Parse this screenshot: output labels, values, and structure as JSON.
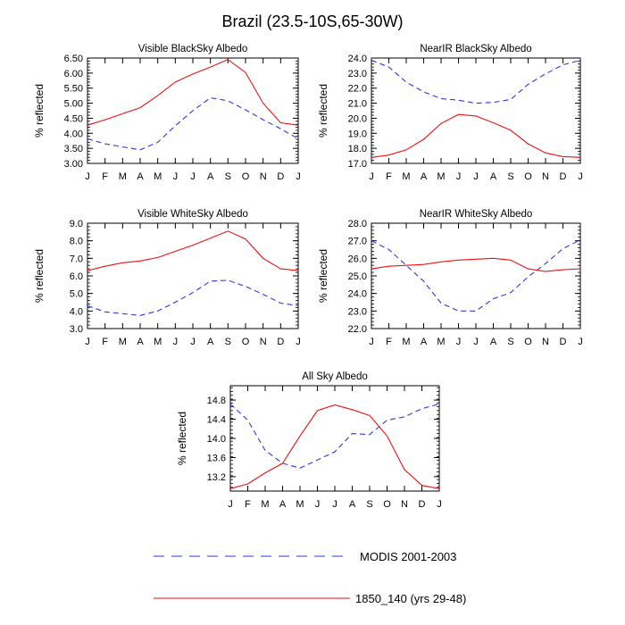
{
  "page_title": "Brazil (23.5-10S,65-30W)",
  "legend": {
    "modis_label": "MODIS 2001-2003",
    "model_label": "1850_140 (yrs 29-48)",
    "modis_color": "#3333ee",
    "model_color": "#ee1111"
  },
  "chart_data": [
    {
      "type": "line",
      "title": "Visible BlackSky Albedo",
      "xlabel": "",
      "ylabel": "% reflected",
      "categories": [
        "J",
        "F",
        "M",
        "A",
        "M",
        "J",
        "J",
        "A",
        "S",
        "O",
        "N",
        "D",
        "J"
      ],
      "ylim": [
        3.0,
        6.5
      ],
      "yticks": [
        "3.00",
        "3.50",
        "4.00",
        "4.50",
        "5.00",
        "5.50",
        "6.00",
        "6.50"
      ],
      "series": [
        {
          "name": "MODIS 2001-2003",
          "style": "dashed",
          "values": [
            3.82,
            3.65,
            3.55,
            3.45,
            3.7,
            4.25,
            4.75,
            5.18,
            5.08,
            4.78,
            4.45,
            4.15,
            3.82
          ]
        },
        {
          "name": "1850_140 (yrs 29-48)",
          "style": "solid",
          "values": [
            4.27,
            4.45,
            4.65,
            4.85,
            5.25,
            5.7,
            5.97,
            6.2,
            6.45,
            6.02,
            5.0,
            4.35,
            4.27
          ]
        }
      ]
    },
    {
      "type": "line",
      "title": "NearIR BlackSky Albedo",
      "xlabel": "",
      "ylabel": "% reflected",
      "categories": [
        "J",
        "F",
        "M",
        "A",
        "M",
        "J",
        "J",
        "A",
        "S",
        "O",
        "N",
        "D",
        "J"
      ],
      "ylim": [
        17.0,
        24.0
      ],
      "yticks": [
        "17.0",
        "18.0",
        "19.0",
        "20.0",
        "21.0",
        "22.0",
        "23.0",
        "24.0"
      ],
      "series": [
        {
          "name": "MODIS 2001-2003",
          "style": "dashed",
          "values": [
            23.85,
            23.4,
            22.4,
            21.75,
            21.3,
            21.2,
            21.0,
            21.05,
            21.25,
            22.25,
            22.95,
            23.55,
            23.85
          ]
        },
        {
          "name": "1850_140 (yrs 29-48)",
          "style": "solid",
          "values": [
            17.4,
            17.55,
            17.9,
            18.6,
            19.65,
            20.25,
            20.15,
            19.7,
            19.2,
            18.3,
            17.7,
            17.45,
            17.4
          ]
        }
      ]
    },
    {
      "type": "line",
      "title": "Visible WhiteSky Albedo",
      "xlabel": "",
      "ylabel": "% reflected",
      "categories": [
        "J",
        "F",
        "M",
        "A",
        "M",
        "J",
        "J",
        "A",
        "S",
        "O",
        "N",
        "D",
        "J"
      ],
      "ylim": [
        3.0,
        9.0
      ],
      "yticks": [
        "3.0",
        "4.0",
        "5.0",
        "6.0",
        "7.0",
        "8.0",
        "9.0"
      ],
      "series": [
        {
          "name": "MODIS 2001-2003",
          "style": "dashed",
          "values": [
            4.3,
            3.95,
            3.85,
            3.75,
            4.0,
            4.5,
            5.05,
            5.7,
            5.75,
            5.4,
            4.95,
            4.45,
            4.3
          ]
        },
        {
          "name": "1850_140 (yrs 29-48)",
          "style": "solid",
          "values": [
            6.3,
            6.55,
            6.75,
            6.85,
            7.05,
            7.4,
            7.75,
            8.15,
            8.55,
            8.1,
            7.0,
            6.4,
            6.3
          ]
        }
      ]
    },
    {
      "type": "line",
      "title": "NearIR WhiteSky Albedo",
      "xlabel": "",
      "ylabel": "% reflected",
      "categories": [
        "J",
        "F",
        "M",
        "A",
        "M",
        "J",
        "J",
        "A",
        "S",
        "O",
        "N",
        "D",
        "J"
      ],
      "ylim": [
        22.0,
        28.0
      ],
      "yticks": [
        "22.0",
        "23.0",
        "24.0",
        "25.0",
        "26.0",
        "27.0",
        "28.0"
      ],
      "series": [
        {
          "name": "MODIS 2001-2003",
          "style": "dashed",
          "values": [
            27.0,
            26.5,
            25.6,
            24.7,
            23.45,
            23.0,
            23.0,
            23.7,
            24.05,
            24.95,
            25.7,
            26.55,
            27.05
          ]
        },
        {
          "name": "1850_140 (yrs 29-48)",
          "style": "solid",
          "values": [
            25.4,
            25.55,
            25.6,
            25.65,
            25.8,
            25.9,
            25.95,
            26.0,
            25.9,
            25.4,
            25.25,
            25.35,
            25.4
          ]
        }
      ]
    },
    {
      "type": "line",
      "title": "All Sky Albedo",
      "xlabel": "",
      "ylabel": "% reflected",
      "categories": [
        "J",
        "F",
        "M",
        "A",
        "M",
        "J",
        "J",
        "A",
        "S",
        "O",
        "N",
        "D",
        "J"
      ],
      "ylim": [
        12.9,
        15.1
      ],
      "yticks": [
        "13.2",
        "13.6",
        "14.0",
        "14.4",
        "14.8"
      ],
      "series": [
        {
          "name": "MODIS 2001-2003",
          "style": "dashed",
          "values": [
            14.72,
            14.38,
            13.75,
            13.48,
            13.38,
            13.55,
            13.72,
            14.1,
            14.08,
            14.38,
            14.45,
            14.62,
            14.72
          ]
        },
        {
          "name": "1850_140 (yrs 29-48)",
          "style": "solid",
          "values": [
            12.95,
            13.05,
            13.28,
            13.48,
            14.05,
            14.58,
            14.7,
            14.6,
            14.48,
            14.05,
            13.35,
            13.02,
            12.95
          ]
        }
      ]
    }
  ]
}
